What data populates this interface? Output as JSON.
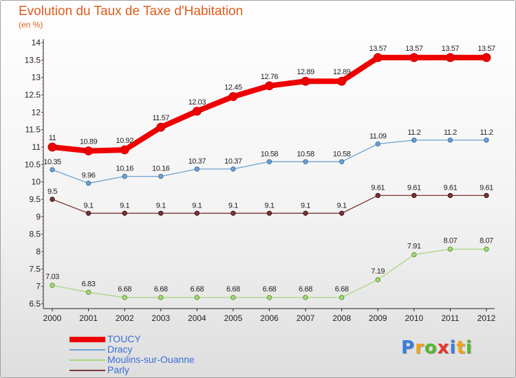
{
  "title": "Evolution du Taux de Taxe d'Habitation",
  "subtitle": "(en %)",
  "logo": {
    "text": "Proxiti",
    "letters": [
      {
        "ch": "P",
        "color": "#3a7de0"
      },
      {
        "ch": "r",
        "color": "#f0a31a"
      },
      {
        "ch": "o",
        "color": "#58b82c"
      },
      {
        "ch": "x",
        "color": "#e8342a"
      },
      {
        "ch": "i",
        "color": "#3a7de0"
      },
      {
        "ch": "t",
        "color": "#f0a31a"
      },
      {
        "ch": "i",
        "color": "#58b82c"
      }
    ]
  },
  "chart_data": {
    "type": "line",
    "x": [
      "2000",
      "2001",
      "2002",
      "2003",
      "2004",
      "2005",
      "2006",
      "2007",
      "2008",
      "2009",
      "2010",
      "2011",
      "2012"
    ],
    "ylim": [
      6.5,
      14
    ],
    "yticks": [
      "6.5",
      "7",
      "7.5",
      "8",
      "8.5",
      "9",
      "9.5",
      "10",
      "10.5",
      "11",
      "11.5",
      "12",
      "12.5",
      "13",
      "13.5",
      "14"
    ],
    "grid": false,
    "legend_position": "bottom-left",
    "series": [
      {
        "name": "TOUCY",
        "color": "#ee0000",
        "values": [
          11,
          10.89,
          10.92,
          11.57,
          12.03,
          12.45,
          12.76,
          12.89,
          12.89,
          13.57,
          13.57,
          13.57,
          13.57
        ],
        "labels": [
          "11",
          "10.89",
          "10.92",
          "11.57",
          "12.03",
          "12.45",
          "12.76",
          "12.89",
          "12.89",
          "13.57",
          "13.57",
          "13.57",
          "13.57"
        ]
      },
      {
        "name": "Dracy",
        "color": "#6fa1d1",
        "values": [
          10.35,
          9.96,
          10.16,
          10.16,
          10.37,
          10.37,
          10.58,
          10.58,
          10.58,
          11.09,
          11.2,
          11.2,
          11.2
        ],
        "labels": [
          "10.35",
          "9.96",
          "10.16",
          "10.16",
          "10.37",
          "10.37",
          "10.58",
          "10.58",
          "10.58",
          "11.09",
          "11.2",
          "11.2",
          "11.2"
        ]
      },
      {
        "name": "Moulins-sur-Ouanne",
        "color": "#a5d77c",
        "values": [
          7.03,
          6.83,
          6.68,
          6.68,
          6.68,
          6.68,
          6.68,
          6.68,
          6.68,
          7.19,
          7.91,
          8.07,
          8.07
        ],
        "labels": [
          "7.03",
          "6.83",
          "6.68",
          "6.68",
          "6.68",
          "6.68",
          "6.68",
          "6.68",
          "6.68",
          "7.19",
          "7.91",
          "8.07",
          "8.07"
        ]
      },
      {
        "name": "Parly",
        "color": "#7a3535",
        "values": [
          9.5,
          9.1,
          9.1,
          9.1,
          9.1,
          9.1,
          9.1,
          9.1,
          9.1,
          9.61,
          9.61,
          9.61,
          9.61
        ],
        "labels": [
          "9.5",
          "9.1",
          "9.1",
          "9.1",
          "9.1",
          "9.1",
          "9.1",
          "9.1",
          "9.1",
          "9.61",
          "9.61",
          "9.61",
          "9.61"
        ]
      }
    ]
  }
}
